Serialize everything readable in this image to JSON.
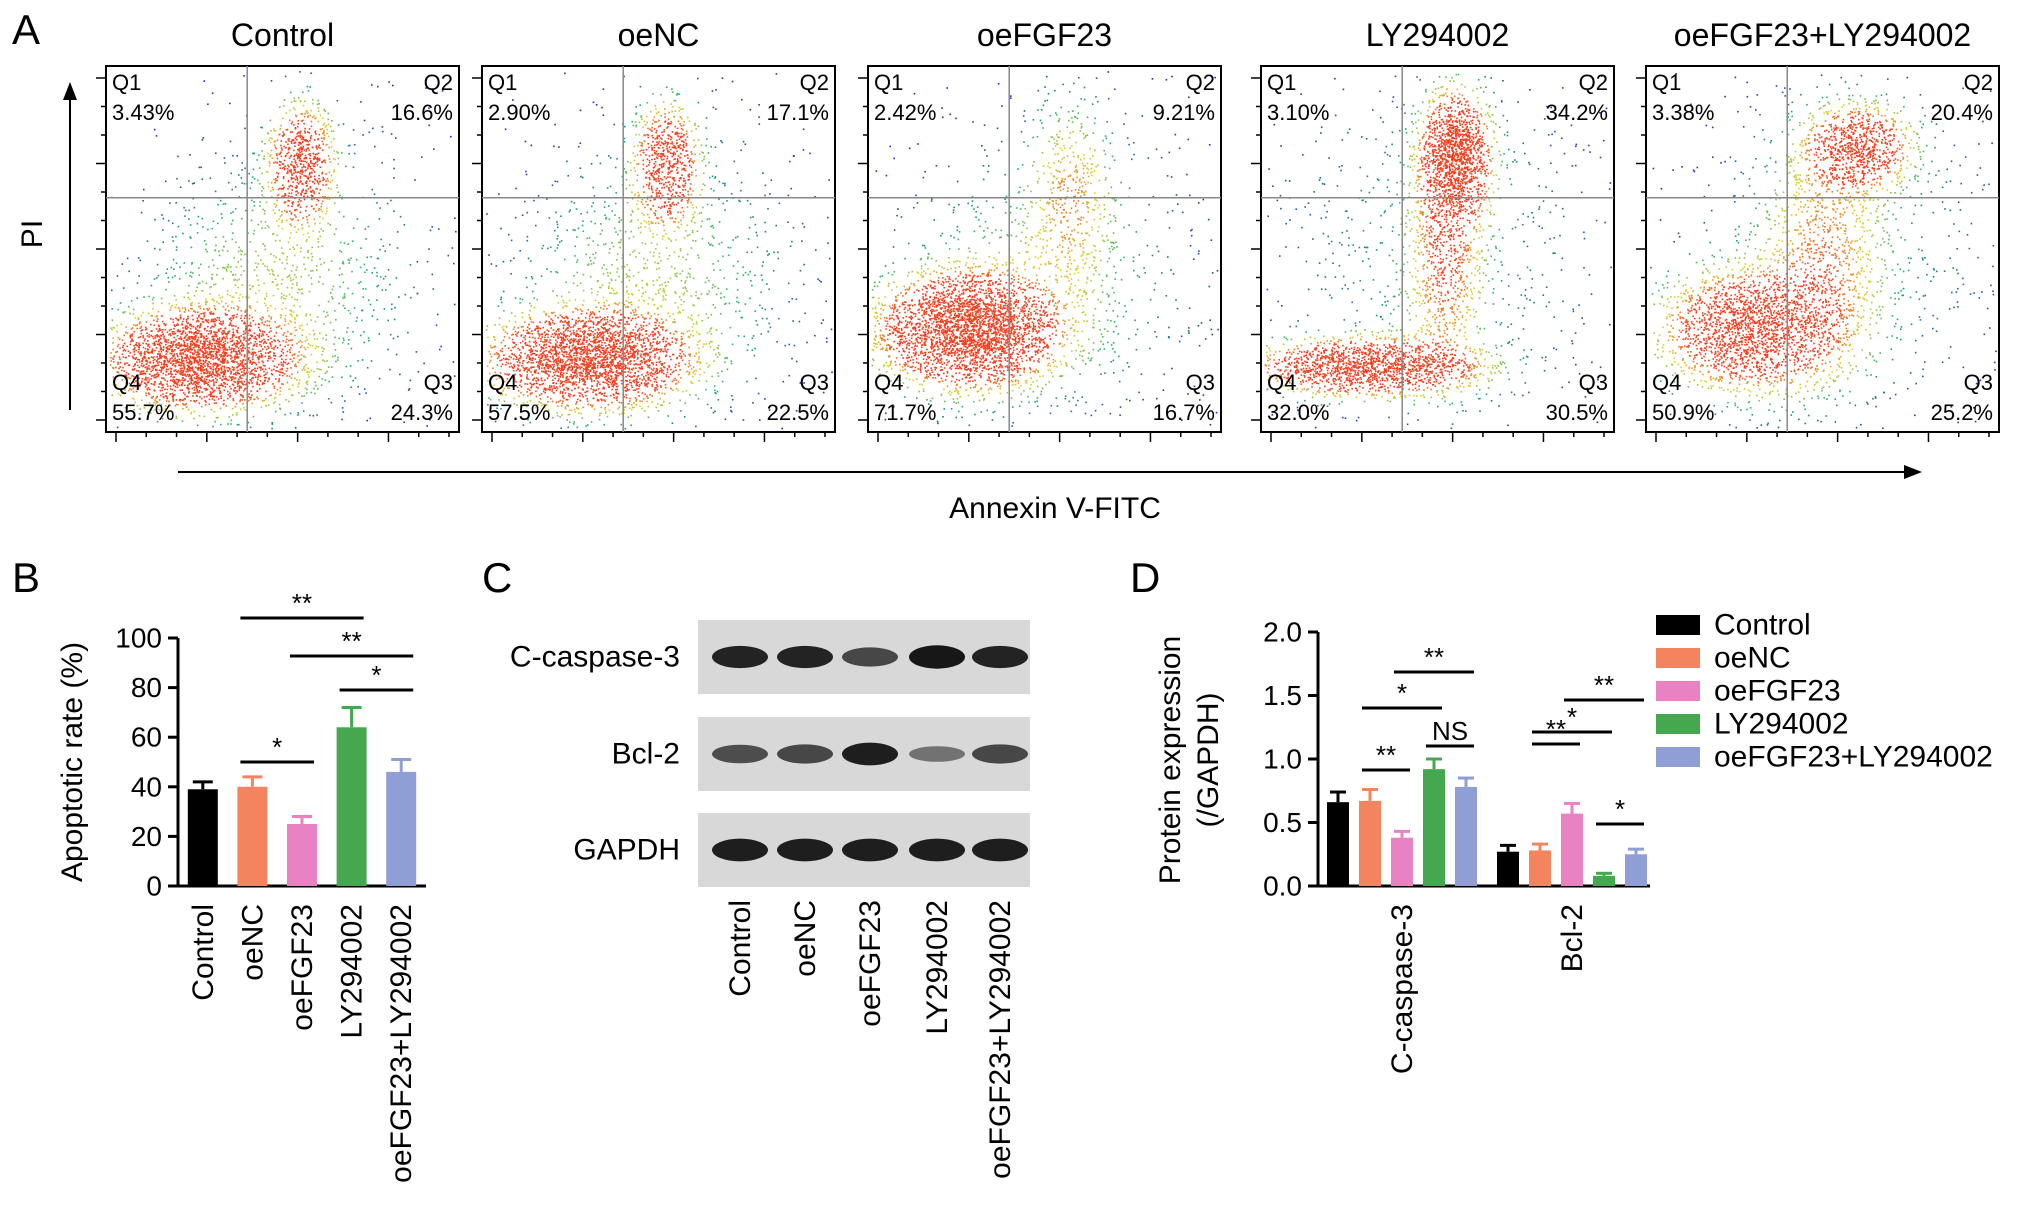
{
  "panel_letters": [
    "A",
    "B",
    "C",
    "D"
  ],
  "colors": {
    "Control": "#000000",
    "oeNC": "#f4845f",
    "oeFGF23": "#e882c3",
    "LY294002": "#45a84f",
    "oeFGF23+LY294002": "#8f9ed4",
    "flow_low": "#1515d6",
    "flow_mid": "#1fb36b",
    "flow_high": "#f04020"
  },
  "chart_data": [
    {
      "panel": "A",
      "type": "scatter",
      "xlabel": "Annexin V-FITC",
      "ylabel": "PI",
      "quadrant_names": [
        "Q1",
        "Q2",
        "Q3",
        "Q4"
      ],
      "plots": [
        {
          "title": "Control",
          "q1": "3.43%",
          "q2": "16.6%",
          "q3": "24.3%",
          "q4": "55.7%"
        },
        {
          "title": "oeNC",
          "q1": "2.90%",
          "q2": "17.1%",
          "q3": "22.5%",
          "q4": "57.5%"
        },
        {
          "title": "oeFGF23",
          "q1": "2.42%",
          "q2": "9.21%",
          "q3": "16.7%",
          "q4": "71.7%"
        },
        {
          "title": "LY294002",
          "q1": "3.10%",
          "q2": "34.2%",
          "q3": "30.5%",
          "q4": "32.0%"
        },
        {
          "title": "oeFGF23+LY294002",
          "q1": "3.38%",
          "q2": "20.4%",
          "q3": "25.2%",
          "q4": "50.9%"
        }
      ]
    },
    {
      "panel": "B",
      "type": "bar",
      "ylabel": "Apoptotic rate (%)",
      "ylim": [
        0,
        100
      ],
      "yticks": [
        "0",
        "20",
        "40",
        "60",
        "80",
        "100"
      ],
      "categories": [
        "Control",
        "oeNC",
        "oeFGF23",
        "LY294002",
        "oeFGF23+LY294002"
      ],
      "values": [
        39,
        40,
        25,
        64,
        46
      ],
      "errors": [
        3,
        4,
        3,
        8,
        5
      ],
      "significance": [
        {
          "from": 1,
          "to": 2,
          "label": "*"
        },
        {
          "from": 1,
          "to": 3,
          "label": "**"
        },
        {
          "from": 2,
          "to": 4,
          "label": "**"
        },
        {
          "from": 3,
          "to": 4,
          "label": "*"
        }
      ]
    },
    {
      "panel": "C",
      "type": "table",
      "row_labels": [
        "C-caspase-3",
        "Bcl-2",
        "GAPDH"
      ],
      "lanes": [
        "Control",
        "oeNC",
        "oeFGF23",
        "LY294002",
        "oeFGF23+LY294002"
      ],
      "band_intensity": [
        [
          0.85,
          0.85,
          0.6,
          0.95,
          0.85
        ],
        [
          0.55,
          0.6,
          0.9,
          0.3,
          0.6
        ],
        [
          0.9,
          0.9,
          0.9,
          0.9,
          0.9
        ]
      ]
    },
    {
      "panel": "D",
      "type": "bar",
      "ylabel": "Protein expression (/GAPDH)",
      "ylabel_lines": [
        "Protein expression",
        "(/GAPDH)"
      ],
      "ylim": [
        0,
        2
      ],
      "yticks": [
        "0.0",
        "0.5",
        "1.0",
        "1.5",
        "2.0"
      ],
      "categories": [
        "C-caspase-3",
        "Bcl-2"
      ],
      "series": [
        {
          "name": "Control",
          "values": [
            0.66,
            0.27
          ],
          "errors": [
            0.08,
            0.05
          ]
        },
        {
          "name": "oeNC",
          "values": [
            0.67,
            0.28
          ],
          "errors": [
            0.09,
            0.05
          ]
        },
        {
          "name": "oeFGF23",
          "values": [
            0.38,
            0.57
          ],
          "errors": [
            0.05,
            0.08
          ]
        },
        {
          "name": "LY294002",
          "values": [
            0.92,
            0.08
          ],
          "errors": [
            0.08,
            0.02
          ]
        },
        {
          "name": "oeFGF23+LY294002",
          "values": [
            0.78,
            0.25
          ],
          "errors": [
            0.07,
            0.04
          ]
        }
      ],
      "significance": [
        {
          "group": 0,
          "from": 1,
          "to": 2,
          "label": "**"
        },
        {
          "group": 0,
          "from": 1,
          "to": 3,
          "label": "*"
        },
        {
          "group": 0,
          "from": 2,
          "to": 4,
          "label": "**"
        },
        {
          "group": 0,
          "from": 3,
          "to": 4,
          "label": "NS"
        },
        {
          "group": 1,
          "from": 1,
          "to": 2,
          "label": "**"
        },
        {
          "group": 1,
          "from": 1,
          "to": 3,
          "label": "*"
        },
        {
          "group": 1,
          "from": 2,
          "to": 4,
          "label": "**"
        },
        {
          "group": 1,
          "from": 3,
          "to": 4,
          "label": "*"
        }
      ],
      "legend_position": "top-right"
    }
  ]
}
